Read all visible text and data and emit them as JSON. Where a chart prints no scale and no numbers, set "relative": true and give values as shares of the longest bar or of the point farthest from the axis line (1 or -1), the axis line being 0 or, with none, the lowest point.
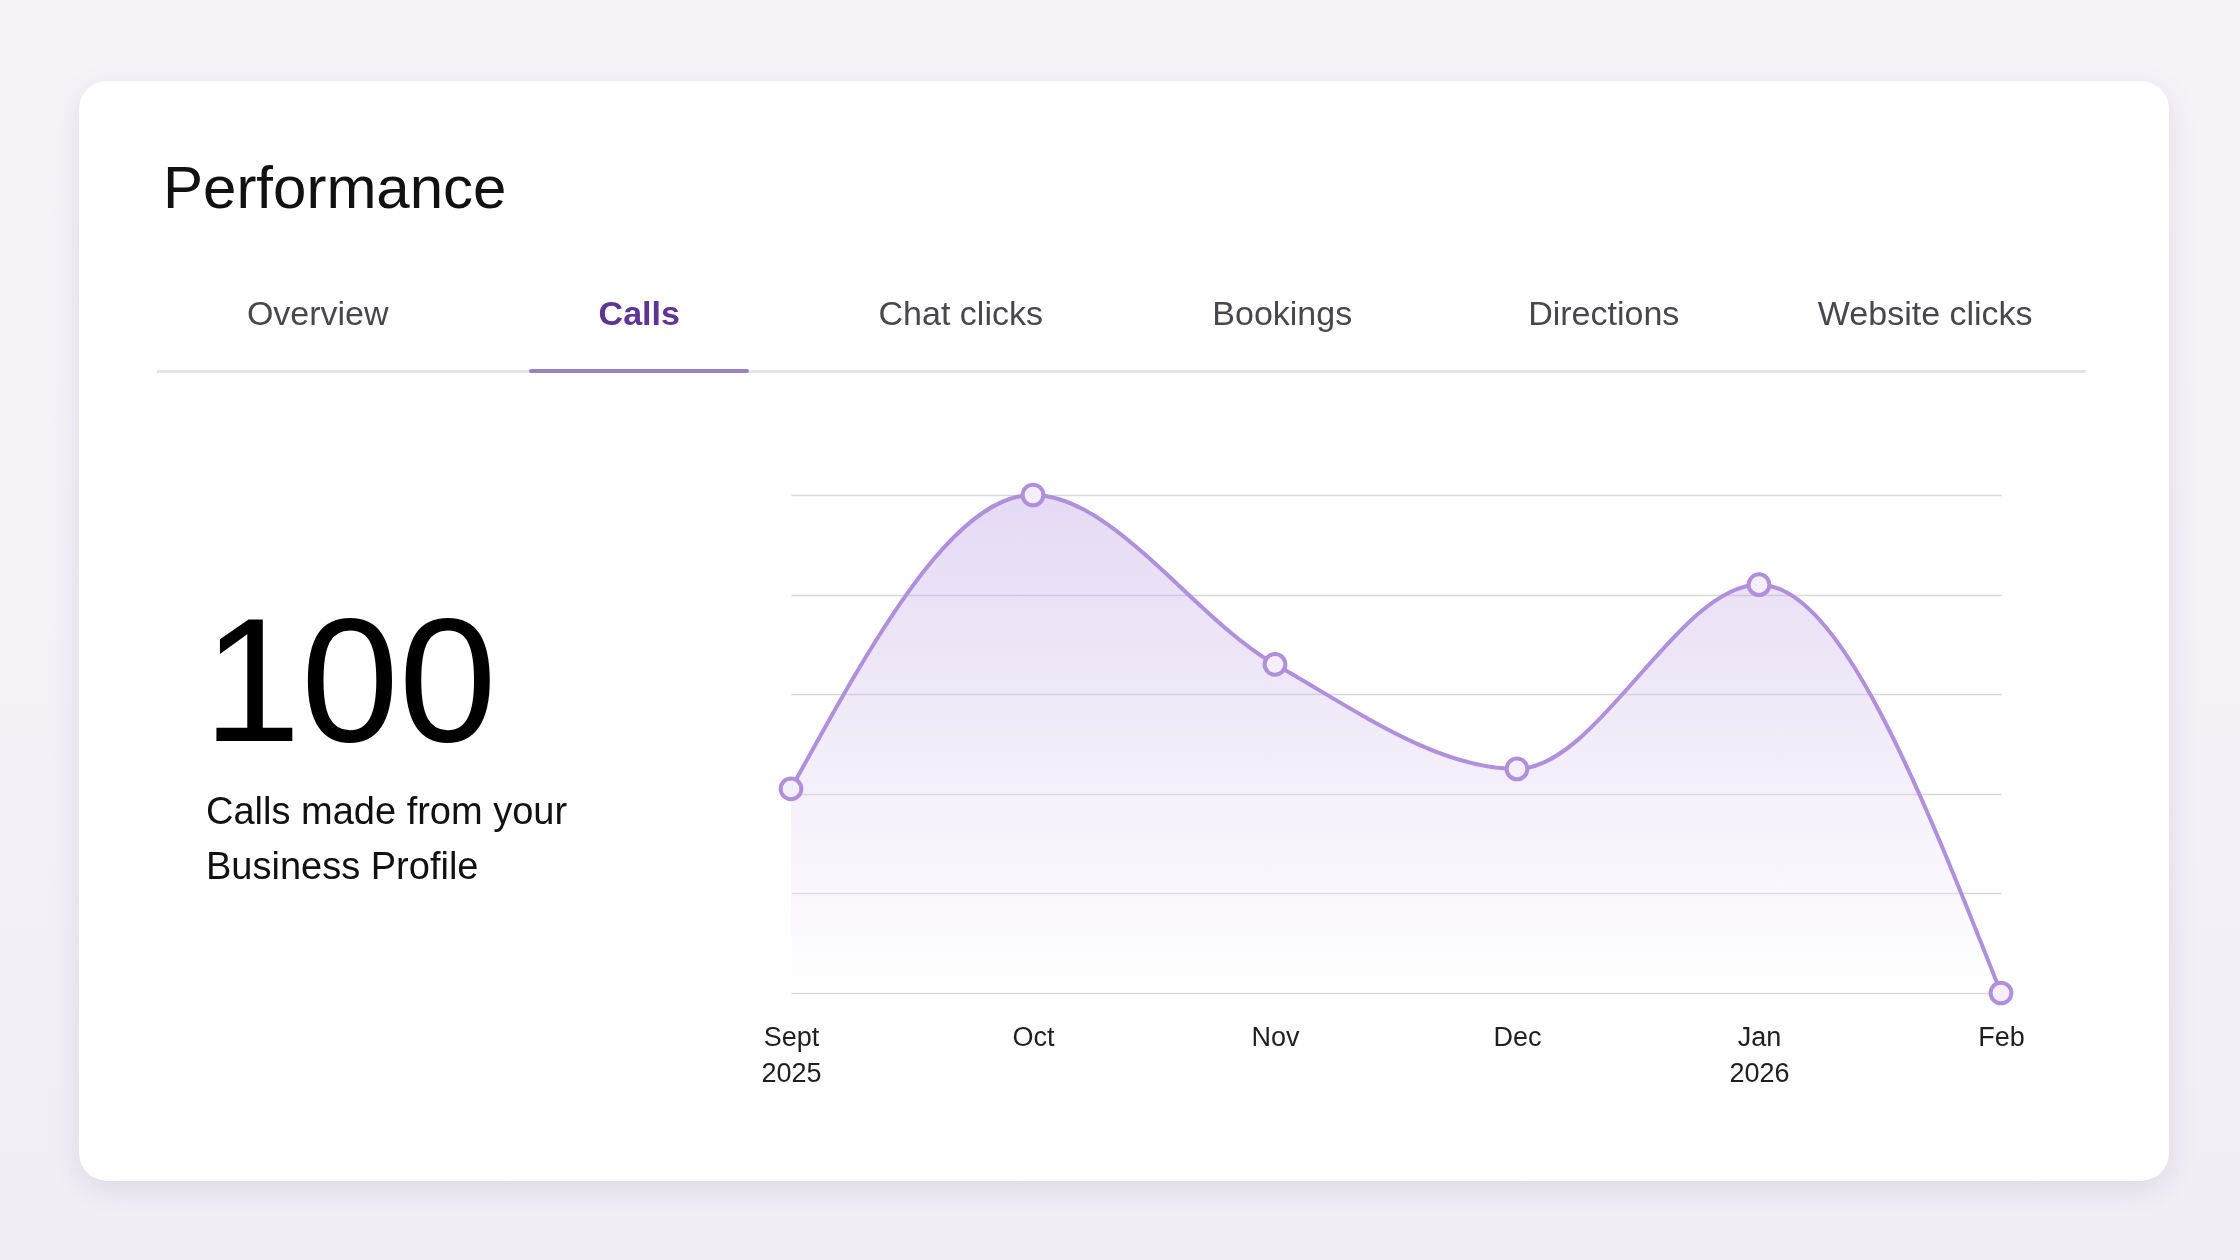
{
  "chart_data": {
    "type": "area",
    "title": "Performance",
    "annotations": [
      "100",
      "Calls made from your Business Profile",
      "Overview",
      "Calls",
      "Chat clicks",
      "Bookings",
      "Directions",
      "Website clicks"
    ],
    "categories": [
      "Sept 2025",
      "Oct",
      "Nov",
      "Dec",
      "Jan 2026",
      "Feb"
    ],
    "values": [
      0.41,
      1,
      0.66,
      0.45,
      0.82,
      0
    ],
    "color": "#b08fdc",
    "relative": true,
    "grid": "y",
    "marker": "circle"
  }
}
